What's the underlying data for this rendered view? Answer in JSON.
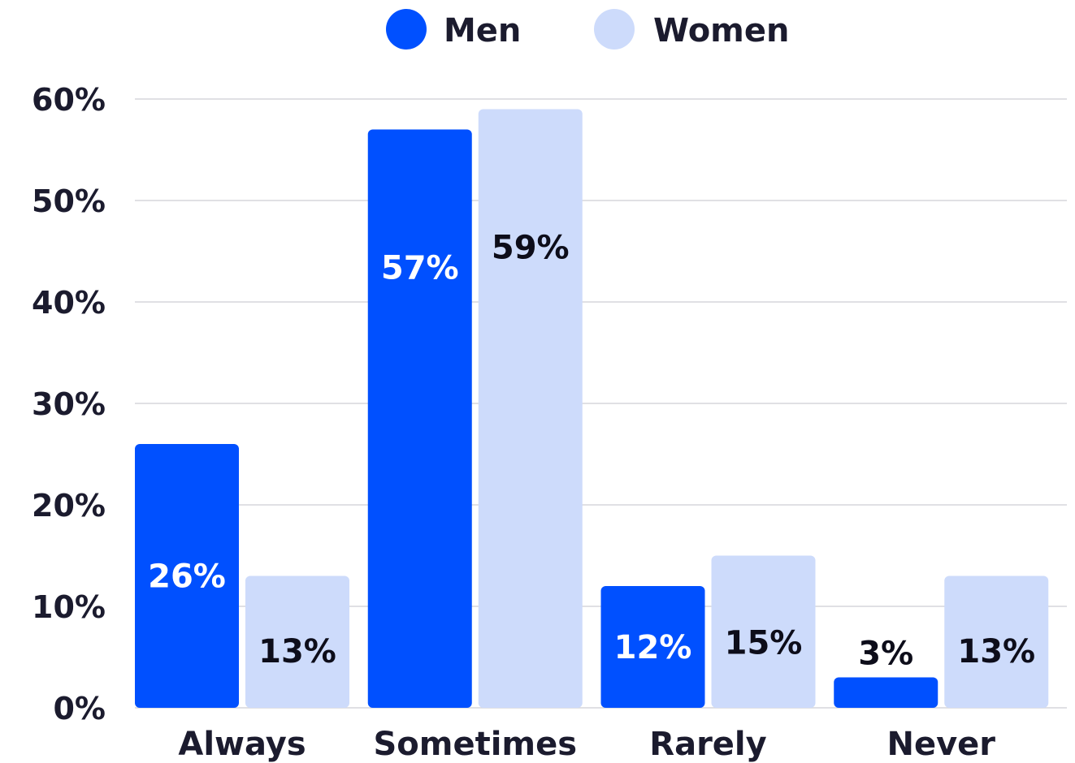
{
  "chart_data": {
    "type": "bar",
    "categories": [
      "Always",
      "Sometimes",
      "Rarely",
      "Never"
    ],
    "series": [
      {
        "name": "Men",
        "values": [
          26,
          57,
          12,
          3
        ],
        "color": "#0050ff",
        "label_color": "#ffffff"
      },
      {
        "name": "Women",
        "values": [
          13,
          59,
          15,
          13
        ],
        "color": "#cddbfb",
        "label_color": "#0d0d1a"
      }
    ],
    "data_labels": [
      [
        "26%",
        "57%",
        "12%",
        "3%"
      ],
      [
        "13%",
        "59%",
        "15%",
        "13%"
      ]
    ],
    "y_ticks": [
      0,
      10,
      20,
      30,
      40,
      50,
      60
    ],
    "y_tick_labels": [
      "0%",
      "10%",
      "20%",
      "30%",
      "40%",
      "50%",
      "60%"
    ],
    "ylim": [
      0,
      60
    ],
    "grid": true,
    "legend_position": "top-center",
    "title": "",
    "xlabel": "",
    "ylabel": ""
  }
}
